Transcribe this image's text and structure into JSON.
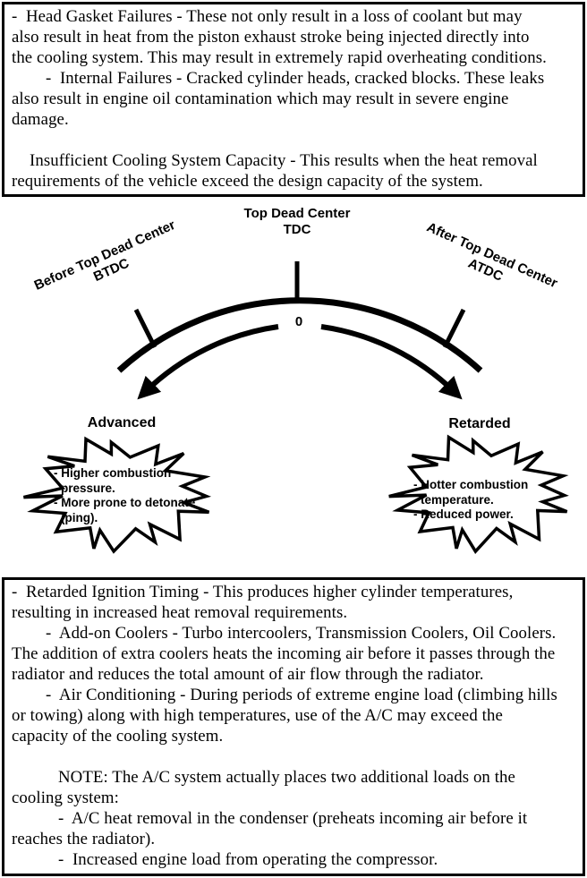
{
  "colors": {
    "ink": "#000000",
    "paper": "#ffffff"
  },
  "top_box": {
    "lines": [
      "-  Head Gasket Failures - These not only result in a loss of coolant but may",
      "also result in heat from the piston exhaust stroke being injected directly into",
      "the cooling system. This may result in extremely rapid overheating conditions.",
      "-  Internal Failures - Cracked cylinder heads, cracked blocks. These leaks",
      "also result in engine oil contamination which may result in severe engine",
      "damage.",
      "",
      "Insufficient Cooling System Capacity - This results when the heat removal",
      "requirements of the vehicle exceed the design capacity of the system."
    ]
  },
  "diagram": {
    "tdc": {
      "label": "Top Dead Center",
      "abbr": "TDC"
    },
    "btdc": {
      "label": "Before Top Dead Center",
      "abbr": "BTDC"
    },
    "atdc": {
      "label": "After Top Dead Center",
      "abbr": "ATDC"
    },
    "zero": "0",
    "advanced": {
      "label": "Advanced",
      "effects": [
        "- Higher combustion pressure.",
        "- More prone to detonate (ping)."
      ]
    },
    "retarded": {
      "label": "Retarded",
      "effects": [
        "- Hotter combustion temperature.",
        "- Reduced power."
      ]
    }
  },
  "bottom_box": {
    "lines": [
      "-  Retarded Ignition Timing - This produces higher cylinder temperatures,",
      "resulting in increased heat removal requirements.",
      "-  Add-on Coolers - Turbo intercoolers, Transmission Coolers, Oil Coolers.",
      "The addition of extra coolers heats the incoming air before it passes through the",
      "radiator and reduces the total amount of air flow through the radiator.",
      "-  Air Conditioning - During periods of extreme engine load (climbing hills",
      "or towing) along with high temperatures, use of the A/C may exceed the",
      "capacity of the cooling system.",
      "",
      "NOTE: The A/C system actually places two additional loads on the",
      "cooling system:",
      "-  A/C heat removal in the condenser (preheats incoming air before it",
      "reaches the radiator).",
      "-  Increased engine load from operating the compressor."
    ]
  }
}
